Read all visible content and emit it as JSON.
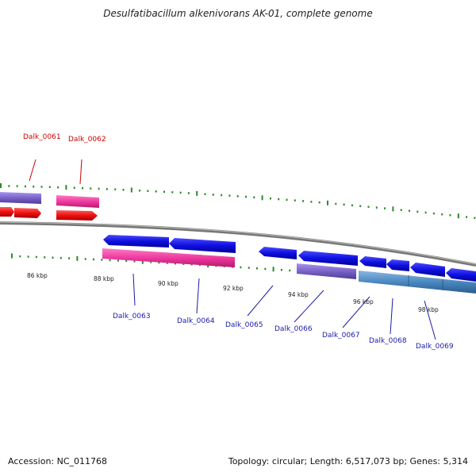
{
  "title": "Desulfatibacillum alkenivorans AK-01, complete genome",
  "accession": "Accession: NC_011768",
  "summary": "Topology: circular; Length: 6,517,073 bp; Genes: 5,314",
  "colors": {
    "backbone": "#8a8a8a",
    "tick": "#2a8a2a",
    "gene_forward": "#1010e0",
    "gene_reverse": "#ee1010",
    "rna": "#ee3aa0",
    "cds_purple": "#7a62c8",
    "cds_steel": "#4a88c0",
    "label_red": "#cc0000",
    "label_blue": "#1a1aaa"
  },
  "kbp_labels": [
    "86 kbp",
    "88 kbp",
    "90 kbp",
    "92 kbp",
    "94 kbp",
    "96 kbp",
    "98 kbp"
  ],
  "gene_labels": [
    {
      "text": "Dalk_0061",
      "color": "red"
    },
    {
      "text": "Dalk_0062",
      "color": "red"
    },
    {
      "text": "Dalk_0063",
      "color": "blue"
    },
    {
      "text": "Dalk_0064",
      "color": "blue"
    },
    {
      "text": "Dalk_0065",
      "color": "blue"
    },
    {
      "text": "Dalk_0066",
      "color": "blue"
    },
    {
      "text": "Dalk_0067",
      "color": "blue"
    },
    {
      "text": "Dalk_0068",
      "color": "blue"
    },
    {
      "text": "Dalk_0069",
      "color": "blue"
    }
  ]
}
